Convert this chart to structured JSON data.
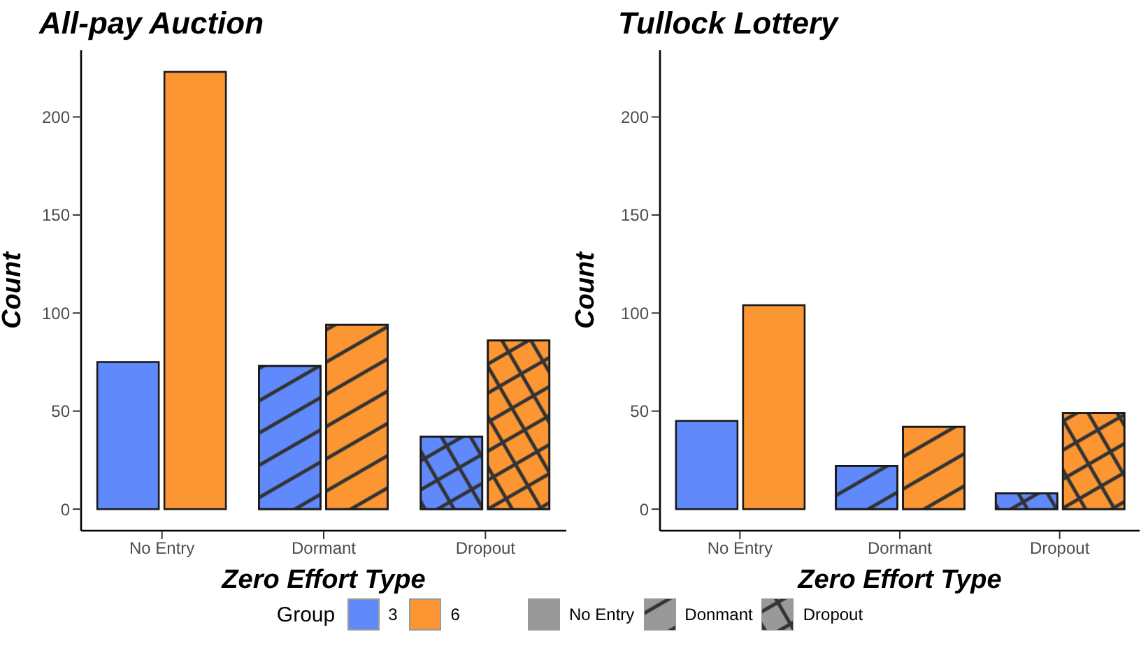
{
  "chart_data": [
    {
      "type": "bar",
      "title": "All-pay Auction",
      "xlabel": "Zero Effort Type",
      "ylabel": "Count",
      "categories": [
        "No Entry",
        "Dormant",
        "Dropout"
      ],
      "series": [
        {
          "name": "3",
          "color": "#6089fc",
          "values": [
            75,
            73,
            37
          ]
        },
        {
          "name": "6",
          "color": "#fc9633",
          "values": [
            223,
            94,
            86
          ]
        }
      ],
      "ylim": [
        -11,
        234
      ],
      "yticks": [
        0,
        50,
        100,
        150,
        200
      ],
      "grid": false,
      "legend": "bottom",
      "legend_title": "Group",
      "annotations": [
        "No Entry",
        "Donmant",
        "Dropout"
      ]
    },
    {
      "type": "bar",
      "title": "Tullock Lottery",
      "xlabel": "Zero Effort Type",
      "ylabel": "Count",
      "categories": [
        "No Entry",
        "Dormant",
        "Dropout"
      ],
      "series": [
        {
          "name": "3",
          "color": "#6089fc",
          "values": [
            45,
            22,
            8
          ]
        },
        {
          "name": "6",
          "color": "#fc9633",
          "values": [
            104,
            42,
            49
          ]
        }
      ],
      "ylim": [
        -11,
        234
      ],
      "yticks": [
        0,
        50,
        100,
        150,
        200
      ],
      "grid": false
    }
  ]
}
